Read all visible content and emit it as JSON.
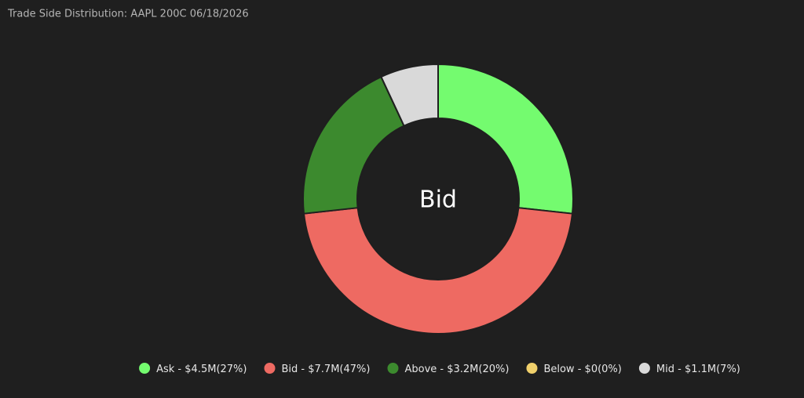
{
  "chart_data": {
    "type": "donut",
    "title": "Trade Side Distribution: AAPL 200C 06/18/2026",
    "center_label": "Bid",
    "categories": [
      "Ask",
      "Bid",
      "Above",
      "Below",
      "Mid"
    ],
    "values": [
      27,
      47,
      20,
      0,
      7
    ],
    "value_labels": [
      "(27%)",
      "(47%)",
      "(20%)",
      "(0%)",
      "(7%)"
    ],
    "amount_labels": [
      "$4.5M",
      "$7.7M",
      "$3.2M",
      "$0",
      "$1.1M"
    ],
    "legend_separator": " - ",
    "colors": [
      "#74fb6f",
      "#ee6a62",
      "#3c8a2e",
      "#f0d06b",
      "#d9d9d9"
    ]
  }
}
